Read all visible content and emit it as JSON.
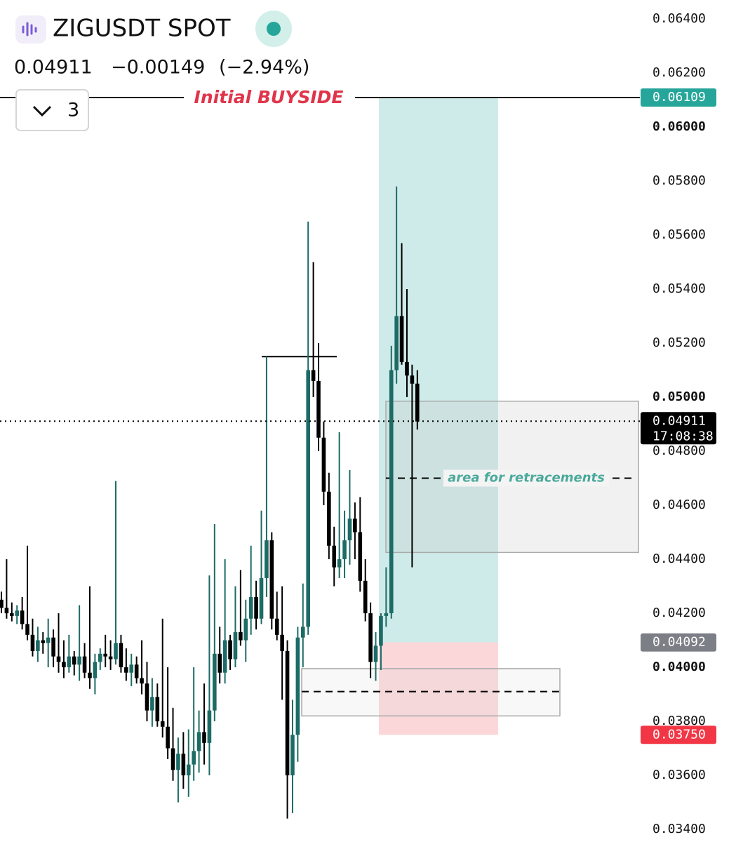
{
  "header": {
    "symbol": "ZIGUSDT SPOT",
    "price": "0.04911",
    "change": "−0.00149",
    "change_pct": "(−2.94%)",
    "indicator_count": "3"
  },
  "chart_data": {
    "type": "candlestick",
    "ylim": [
      0.034,
      0.064
    ],
    "yticks": [
      {
        "value": 0.034,
        "label": "0.03400"
      },
      {
        "value": 0.036,
        "label": "0.03600"
      },
      {
        "value": 0.038,
        "label": "0.03800"
      },
      {
        "value": 0.04,
        "label": "0.04000"
      },
      {
        "value": 0.042,
        "label": "0.04200"
      },
      {
        "value": 0.044,
        "label": "0.04400"
      },
      {
        "value": 0.046,
        "label": "0.04600"
      },
      {
        "value": 0.048,
        "label": "0.04800"
      },
      {
        "value": 0.05,
        "label": "0.05000"
      },
      {
        "value": 0.052,
        "label": "0.05200"
      },
      {
        "value": 0.054,
        "label": "0.05400"
      },
      {
        "value": 0.056,
        "label": "0.05600"
      },
      {
        "value": 0.058,
        "label": "0.05800"
      },
      {
        "value": 0.06,
        "label": "0.06000"
      },
      {
        "value": 0.062,
        "label": "0.06200"
      },
      {
        "value": 0.064,
        "label": "0.06400"
      }
    ],
    "up_color": "#1c6b66",
    "down_color": "#000000",
    "candles": [
      [
        0.0425,
        0.0428,
        0.042,
        0.0422
      ],
      [
        0.0422,
        0.044,
        0.0418,
        0.042
      ],
      [
        0.042,
        0.0424,
        0.0417,
        0.0419
      ],
      [
        0.0419,
        0.0423,
        0.0416,
        0.0421
      ],
      [
        0.0421,
        0.0426,
        0.0414,
        0.0416
      ],
      [
        0.0416,
        0.0445,
        0.041,
        0.0412
      ],
      [
        0.0412,
        0.0418,
        0.0404,
        0.0406
      ],
      [
        0.0406,
        0.0415,
        0.0402,
        0.041
      ],
      [
        0.041,
        0.0413,
        0.0405,
        0.0409
      ],
      [
        0.0409,
        0.0418,
        0.04,
        0.0411
      ],
      [
        0.0411,
        0.0414,
        0.04,
        0.0404
      ],
      [
        0.0404,
        0.042,
        0.0398,
        0.0402
      ],
      [
        0.0402,
        0.041,
        0.0396,
        0.04
      ],
      [
        0.04,
        0.0412,
        0.0398,
        0.0404
      ],
      [
        0.0404,
        0.0406,
        0.0397,
        0.0401
      ],
      [
        0.0401,
        0.0423,
        0.0395,
        0.0404
      ],
      [
        0.0404,
        0.0409,
        0.0396,
        0.0398
      ],
      [
        0.0398,
        0.043,
        0.0392,
        0.0396
      ],
      [
        0.0396,
        0.0405,
        0.039,
        0.0402
      ],
      [
        0.0402,
        0.0407,
        0.0399,
        0.0405
      ],
      [
        0.0405,
        0.0412,
        0.04,
        0.0404
      ],
      [
        0.0404,
        0.041,
        0.0399,
        0.0403
      ],
      [
        0.0403,
        0.0469,
        0.0401,
        0.0409
      ],
      [
        0.0409,
        0.0412,
        0.0398,
        0.04
      ],
      [
        0.04,
        0.0407,
        0.0395,
        0.0398
      ],
      [
        0.0398,
        0.0405,
        0.0393,
        0.0401
      ],
      [
        0.0401,
        0.0404,
        0.0394,
        0.0396
      ],
      [
        0.0396,
        0.041,
        0.039,
        0.0394
      ],
      [
        0.0394,
        0.0402,
        0.038,
        0.0384
      ],
      [
        0.0384,
        0.0396,
        0.0378,
        0.0389
      ],
      [
        0.0389,
        0.0394,
        0.0378,
        0.038
      ],
      [
        0.038,
        0.0418,
        0.0374,
        0.0378
      ],
      [
        0.0378,
        0.04,
        0.0366,
        0.037
      ],
      [
        0.037,
        0.0385,
        0.0358,
        0.0362
      ],
      [
        0.0362,
        0.0374,
        0.035,
        0.0368
      ],
      [
        0.0368,
        0.0376,
        0.0355,
        0.036
      ],
      [
        0.036,
        0.0377,
        0.0352,
        0.0364
      ],
      [
        0.0364,
        0.04,
        0.0358,
        0.0369
      ],
      [
        0.0369,
        0.0384,
        0.0361,
        0.0376
      ],
      [
        0.0376,
        0.0394,
        0.0364,
        0.0372
      ],
      [
        0.0372,
        0.0434,
        0.036,
        0.0384
      ],
      [
        0.0384,
        0.0453,
        0.038,
        0.0405
      ],
      [
        0.0405,
        0.0415,
        0.0394,
        0.0398
      ],
      [
        0.0398,
        0.044,
        0.0394,
        0.041
      ],
      [
        0.041,
        0.0412,
        0.0399,
        0.0403
      ],
      [
        0.0403,
        0.043,
        0.04,
        0.0413
      ],
      [
        0.0413,
        0.0436,
        0.0408,
        0.041
      ],
      [
        0.041,
        0.0425,
        0.0402,
        0.0418
      ],
      [
        0.0418,
        0.0445,
        0.0412,
        0.0426
      ],
      [
        0.0426,
        0.0432,
        0.0414,
        0.0418
      ],
      [
        0.0418,
        0.0458,
        0.0416,
        0.0433
      ],
      [
        0.0433,
        0.0515,
        0.0426,
        0.0447
      ],
      [
        0.0447,
        0.045,
        0.0414,
        0.0418
      ],
      [
        0.0418,
        0.0428,
        0.041,
        0.0412
      ],
      [
        0.0412,
        0.043,
        0.0388,
        0.0406
      ],
      [
        0.0406,
        0.041,
        0.0344,
        0.036
      ],
      [
        0.036,
        0.0388,
        0.0346,
        0.0375
      ],
      [
        0.0375,
        0.0415,
        0.0365,
        0.0411
      ],
      [
        0.0411,
        0.0431,
        0.04,
        0.0415
      ],
      [
        0.0415,
        0.0565,
        0.0412,
        0.051
      ],
      [
        0.051,
        0.055,
        0.05,
        0.0506
      ],
      [
        0.0506,
        0.052,
        0.048,
        0.0485
      ],
      [
        0.0485,
        0.0491,
        0.046,
        0.0465
      ],
      [
        0.0465,
        0.0472,
        0.044,
        0.0445
      ],
      [
        0.0445,
        0.0452,
        0.043,
        0.0437
      ],
      [
        0.0437,
        0.0487,
        0.0433,
        0.044
      ],
      [
        0.044,
        0.0458,
        0.0433,
        0.0447
      ],
      [
        0.0447,
        0.0473,
        0.0438,
        0.0455
      ],
      [
        0.0455,
        0.0461,
        0.044,
        0.045
      ],
      [
        0.045,
        0.0463,
        0.0428,
        0.0432
      ],
      [
        0.0432,
        0.044,
        0.0417,
        0.042
      ],
      [
        0.042,
        0.0424,
        0.0396,
        0.0402
      ],
      [
        0.0402,
        0.0413,
        0.0395,
        0.0408
      ],
      [
        0.0408,
        0.042,
        0.0399,
        0.0419
      ],
      [
        0.0419,
        0.0437,
        0.0415,
        0.042
      ],
      [
        0.042,
        0.0519,
        0.0418,
        0.051
      ],
      [
        0.051,
        0.0578,
        0.0505,
        0.053
      ],
      [
        0.053,
        0.0557,
        0.0512,
        0.0513
      ],
      [
        0.0513,
        0.054,
        0.05,
        0.0508
      ],
      [
        0.0508,
        0.0512,
        0.0437,
        0.0505
      ],
      [
        0.0505,
        0.051,
        0.0488,
        0.0491
      ]
    ],
    "buyside": {
      "value": 0.06109,
      "label": "0.06109",
      "text": "Initial BUYSIDE",
      "color": "#e0344a"
    },
    "last_price": {
      "value": 0.04911,
      "label": "0.04911",
      "countdown": "17:08:38"
    },
    "position": {
      "target": 0.06109,
      "entry": {
        "value": 0.04092,
        "label": "0.04092"
      },
      "stop": {
        "value": 0.0375,
        "label": "0.03750"
      }
    },
    "swing_high": 0.0515,
    "retracement_zone": {
      "top": 0.04985,
      "bottom": 0.04425,
      "mid": 0.047,
      "text": "area for retracements"
    },
    "lower_zone": {
      "top": 0.03995,
      "bottom": 0.0382,
      "mid": 0.0391
    }
  }
}
